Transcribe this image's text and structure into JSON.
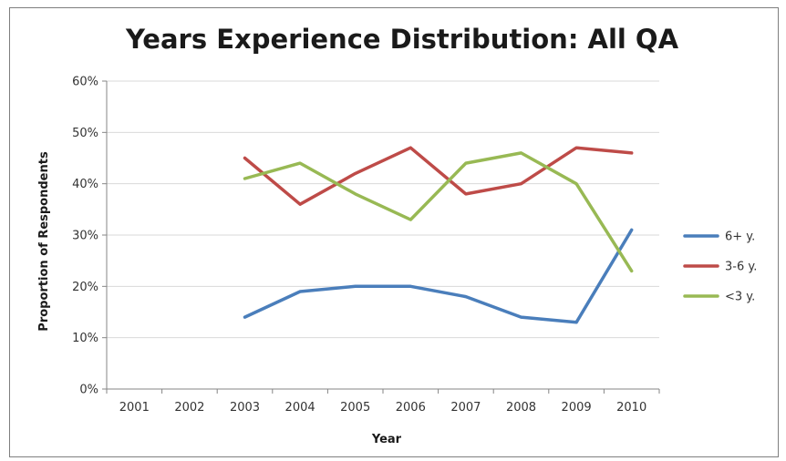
{
  "chart_data": {
    "type": "line",
    "title": "Years Experience Distribution: All QA",
    "xlabel": "Year",
    "ylabel": "Proportion of Respondents",
    "categories": [
      "2001",
      "2002",
      "2003",
      "2004",
      "2005",
      "2006",
      "2007",
      "2008",
      "2009",
      "2010"
    ],
    "y_ticks": [
      "0%",
      "10%",
      "20%",
      "30%",
      "40%",
      "50%",
      "60%"
    ],
    "ylim": [
      0,
      60
    ],
    "grid": true,
    "legend_position": "right",
    "series": [
      {
        "name": "6+ y.",
        "color": "#4a7ebb",
        "values": [
          null,
          null,
          14,
          19,
          20,
          20,
          18,
          14,
          13,
          31
        ]
      },
      {
        "name": "3-6 y.",
        "color": "#be4b48",
        "values": [
          null,
          null,
          45,
          36,
          42,
          47,
          38,
          40,
          47,
          46
        ]
      },
      {
        "name": "<3 y.",
        "color": "#98b954",
        "values": [
          null,
          null,
          41,
          44,
          38,
          33,
          44,
          46,
          40,
          23
        ]
      }
    ]
  }
}
